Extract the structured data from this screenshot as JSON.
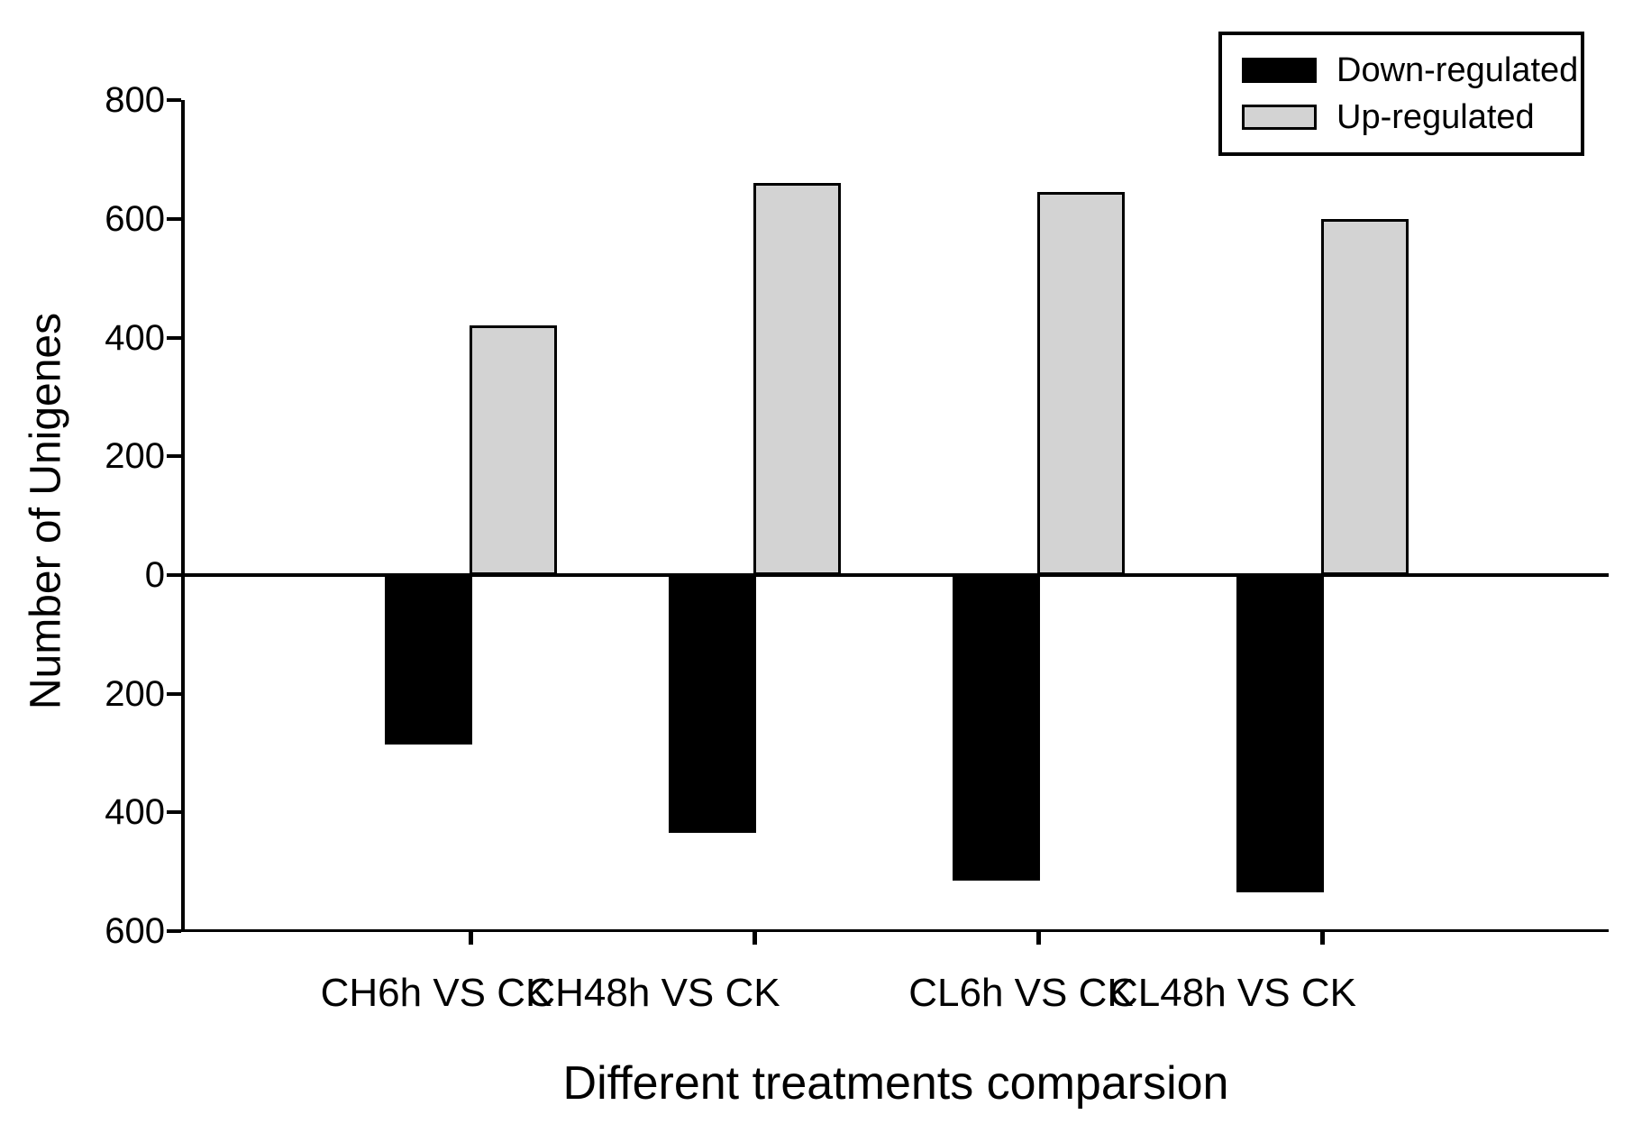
{
  "figure": {
    "background": "#ffffff"
  },
  "chart_data": {
    "type": "bar",
    "title": "",
    "categories": [
      "CH6h VS CK",
      "CH48h VS CK",
      "CL6h VS CK",
      "CL48h VS CK"
    ],
    "series": [
      {
        "name": "Down-regulated",
        "color": "#000000",
        "direction": "down",
        "values": [
          285,
          435,
          515,
          535
        ]
      },
      {
        "name": "Up-regulated",
        "color": "#d3d3d3",
        "direction": "up",
        "values": [
          420,
          660,
          645,
          600
        ]
      }
    ],
    "xlabel": "Different treatments comparsion",
    "ylabel": "Number of Unigenes",
    "y_axis": {
      "tick_labels": [
        "800",
        "600",
        "400",
        "200",
        "0",
        "200",
        "400",
        "600"
      ],
      "tick_values": [
        800,
        600,
        400,
        200,
        0,
        -200,
        -400,
        -600
      ],
      "ylim": [
        -600,
        800
      ]
    },
    "legend": {
      "position": "top-right",
      "entries": [
        {
          "label": "Down-regulated",
          "color": "#000000"
        },
        {
          "label": "Up-regulated",
          "color": "#d3d3d3"
        }
      ]
    },
    "grid": false,
    "axis_color": "#000000"
  }
}
